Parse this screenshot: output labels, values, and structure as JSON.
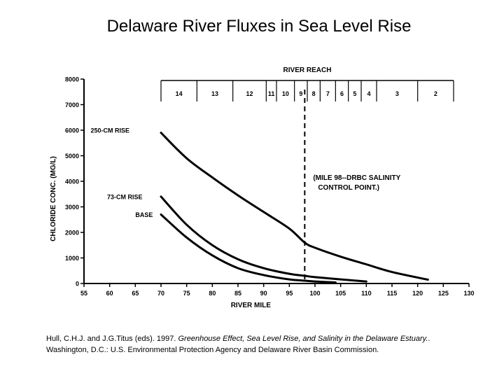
{
  "title": "Delaware River Fluxes in Sea Level Rise",
  "citation": {
    "authors_year": "Hull, C.H.J. and J.G.Titus (eds). 1997.",
    "work_title": "Greenhouse Effect, Sea Level Rise, and Salinity in the Delaware Estuary.",
    "publisher": ". Washington, D.C.: U.S. Environmental Protection Agency and Delaware River Basin Commission."
  },
  "chart_data": {
    "type": "line",
    "xlabel": "RIVER MILE",
    "ylabel": "CHLORIDE CONC. (MG/L)",
    "xlim": [
      55,
      130
    ],
    "ylim": [
      0,
      8000
    ],
    "x_ticks": [
      55,
      60,
      65,
      70,
      75,
      80,
      85,
      90,
      95,
      100,
      105,
      110,
      115,
      120,
      125,
      130
    ],
    "y_ticks": [
      0,
      1000,
      2000,
      3000,
      4000,
      5000,
      6000,
      7000,
      8000
    ],
    "series": [
      {
        "name": "250-CM RISE",
        "x": [
          70,
          75,
          80,
          85,
          90,
          95,
          98,
          100,
          105,
          110,
          115,
          122
        ],
        "y": [
          5900,
          4900,
          4150,
          3450,
          2800,
          2150,
          1600,
          1400,
          1050,
          750,
          450,
          150
        ]
      },
      {
        "name": "73-CM RISE",
        "x": [
          70,
          75,
          80,
          85,
          90,
          95,
          98,
          100,
          105,
          110
        ],
        "y": [
          3400,
          2300,
          1500,
          950,
          600,
          380,
          300,
          250,
          160,
          80
        ]
      },
      {
        "name": "BASE",
        "x": [
          70,
          75,
          80,
          85,
          90,
          95,
          98,
          100,
          104
        ],
        "y": [
          2700,
          1800,
          1100,
          600,
          330,
          160,
          110,
          80,
          40
        ]
      }
    ],
    "reference_line": {
      "x": 98,
      "label_line1": "(MILE 98--DRBC SALINITY",
      "label_line2": "CONTROL POINT.)"
    },
    "reach": {
      "header": "RIVER REACH",
      "boundaries": [
        70,
        77,
        84,
        90.5,
        92.5,
        96,
        98.5,
        101,
        104,
        106.5,
        109,
        112,
        120,
        127
      ],
      "labels": [
        "14",
        "13",
        "12",
        "11",
        "10",
        "9",
        "8",
        "7",
        "6",
        "5",
        "4",
        "3",
        "2"
      ]
    },
    "grid": false
  }
}
